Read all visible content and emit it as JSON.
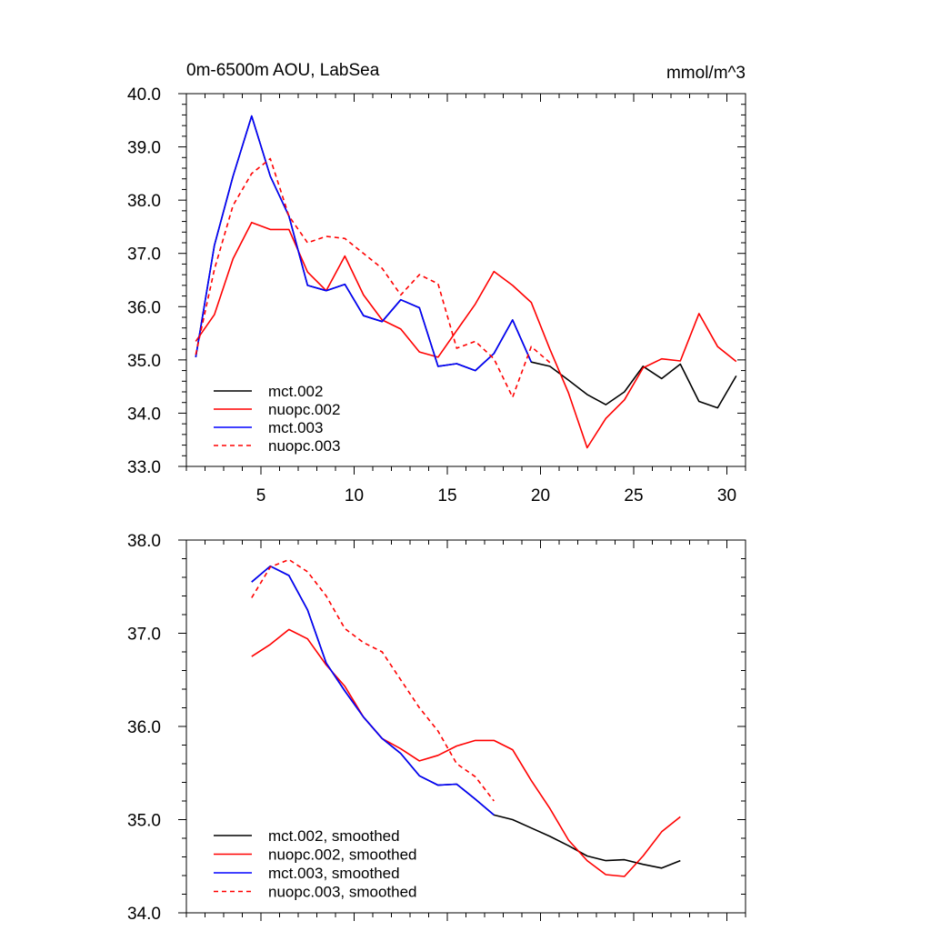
{
  "chart_data": [
    {
      "type": "line",
      "title_left": "0m-6500m AOU, LabSea",
      "title_right": "mmol/m^3",
      "xlabel": "",
      "ylabel": "",
      "xlim": [
        1,
        31
      ],
      "ylim": [
        33,
        40
      ],
      "xticks": [
        5,
        10,
        15,
        20,
        25,
        30
      ],
      "xtick_labels": [
        "5",
        "10",
        "15",
        "20",
        "25",
        "30"
      ],
      "yticks": [
        33,
        34,
        35,
        36,
        37,
        38,
        39,
        40
      ],
      "ytick_labels": [
        "33.0",
        "34.0",
        "35.0",
        "36.0",
        "37.0",
        "38.0",
        "39.0",
        "40.0"
      ],
      "legend_position": "bottom-left",
      "series": [
        {
          "name": "mct.002",
          "color": "#000000",
          "dash": "solid",
          "x": [
            1.5,
            2.5,
            3.5,
            4.5,
            5.5,
            6.5,
            7.5,
            8.5,
            9.5,
            10.5,
            11.5,
            12.5,
            13.5,
            14.5,
            15.5,
            16.5,
            17.5,
            18.5,
            19.5,
            20.5,
            21.5,
            22.5,
            23.5,
            24.5,
            25.5,
            26.5,
            27.5,
            28.5,
            29.5,
            30.5
          ],
          "values": [
            35.05,
            37.15,
            38.45,
            39.58,
            38.45,
            37.7,
            36.4,
            36.3,
            36.42,
            35.83,
            35.72,
            36.13,
            35.98,
            34.88,
            34.93,
            34.8,
            35.12,
            35.75,
            34.96,
            34.88,
            34.62,
            34.35,
            34.16,
            34.4,
            34.88,
            34.65,
            34.92,
            34.22,
            34.1,
            34.7
          ]
        },
        {
          "name": "nuopc.002",
          "color": "#ff0000",
          "dash": "solid",
          "x": [
            1.5,
            2.5,
            3.5,
            4.5,
            5.5,
            6.5,
            7.5,
            8.5,
            9.5,
            10.5,
            11.5,
            12.5,
            13.5,
            14.5,
            15.5,
            16.5,
            17.5,
            18.5,
            19.5,
            20.5,
            21.5,
            22.5,
            23.5,
            24.5,
            25.5,
            26.5,
            27.5,
            28.5,
            29.5,
            30.5
          ],
          "values": [
            35.35,
            35.85,
            36.9,
            37.58,
            37.45,
            37.45,
            36.65,
            36.3,
            36.95,
            36.22,
            35.75,
            35.58,
            35.15,
            35.05,
            35.55,
            36.05,
            36.66,
            36.4,
            36.08,
            35.2,
            34.38,
            33.35,
            33.9,
            34.25,
            34.85,
            35.02,
            34.98,
            35.87,
            35.25,
            34.97
          ]
        },
        {
          "name": "mct.003",
          "color": "#0000ff",
          "dash": "solid",
          "x": [
            1.5,
            2.5,
            3.5,
            4.5,
            5.5,
            6.5,
            7.5,
            8.5,
            9.5,
            10.5,
            11.5,
            12.5,
            13.5,
            14.5,
            15.5,
            16.5,
            17.5,
            18.5,
            19.5
          ],
          "values": [
            35.05,
            37.15,
            38.45,
            39.58,
            38.45,
            37.7,
            36.4,
            36.3,
            36.42,
            35.83,
            35.72,
            36.13,
            35.98,
            34.88,
            34.93,
            34.8,
            35.12,
            35.75,
            34.96
          ]
        },
        {
          "name": "nuopc.003",
          "color": "#ff0000",
          "dash": "dashed",
          "x": [
            1.5,
            2.5,
            3.5,
            4.5,
            5.5,
            6.5,
            7.5,
            8.5,
            9.5,
            10.5,
            11.5,
            12.5,
            13.5,
            14.5,
            15.5,
            16.5,
            17.5,
            18.5,
            19.5,
            20.5
          ],
          "values": [
            35.1,
            36.7,
            37.9,
            38.5,
            38.78,
            37.7,
            37.2,
            37.32,
            37.28,
            37.0,
            36.72,
            36.22,
            36.6,
            36.43,
            35.22,
            35.35,
            35.02,
            34.3,
            35.25,
            34.95
          ]
        }
      ]
    },
    {
      "type": "line",
      "xlabel": "",
      "ylabel": "",
      "xlim": [
        1,
        31
      ],
      "ylim": [
        34,
        38
      ],
      "xticks": [
        5,
        10,
        15,
        20,
        25,
        30
      ],
      "yticks": [
        34,
        35,
        36,
        37,
        38
      ],
      "ytick_labels": [
        "34.0",
        "35.0",
        "36.0",
        "37.0",
        "38.0"
      ],
      "legend_position": "bottom-left",
      "series": [
        {
          "name": "mct.002, smoothed",
          "color": "#000000",
          "dash": "solid",
          "x": [
            4.5,
            5.5,
            6.5,
            7.5,
            8.5,
            9.5,
            10.5,
            11.5,
            12.5,
            13.5,
            14.5,
            15.5,
            16.5,
            17.5,
            18.5,
            19.5,
            20.5,
            21.5,
            22.5,
            23.5,
            24.5,
            25.5,
            26.5,
            27.5
          ],
          "values": [
            37.55,
            37.72,
            37.62,
            37.25,
            36.68,
            36.38,
            36.1,
            35.87,
            35.71,
            35.47,
            35.37,
            35.38,
            35.22,
            35.05,
            35.0,
            34.91,
            34.82,
            34.72,
            34.61,
            34.56,
            34.57,
            34.52,
            34.48,
            34.56
          ]
        },
        {
          "name": "nuopc.002, smoothed",
          "color": "#ff0000",
          "dash": "solid",
          "x": [
            4.5,
            5.5,
            6.5,
            7.5,
            8.5,
            9.5,
            10.5,
            11.5,
            12.5,
            13.5,
            14.5,
            15.5,
            16.5,
            17.5,
            18.5,
            19.5,
            20.5,
            21.5,
            22.5,
            23.5,
            24.5,
            25.5,
            26.5,
            27.5
          ],
          "values": [
            36.75,
            36.88,
            37.04,
            36.94,
            36.66,
            36.43,
            36.1,
            35.87,
            35.76,
            35.63,
            35.69,
            35.79,
            35.85,
            35.85,
            35.75,
            35.42,
            35.12,
            34.78,
            34.56,
            34.41,
            34.39,
            34.61,
            34.87,
            35.03
          ]
        },
        {
          "name": "mct.003, smoothed",
          "color": "#0000ff",
          "dash": "solid",
          "x": [
            4.5,
            5.5,
            6.5,
            7.5,
            8.5,
            9.5,
            10.5,
            11.5,
            12.5,
            13.5,
            14.5,
            15.5,
            16.5,
            17.5
          ],
          "values": [
            37.55,
            37.72,
            37.62,
            37.25,
            36.68,
            36.38,
            36.1,
            35.87,
            35.71,
            35.47,
            35.37,
            35.38,
            35.22,
            35.05
          ]
        },
        {
          "name": "nuopc.003, smoothed",
          "color": "#ff0000",
          "dash": "dashed",
          "x": [
            4.5,
            5.5,
            6.5,
            7.5,
            8.5,
            9.5,
            10.5,
            11.5,
            12.5,
            13.5,
            14.5,
            15.5,
            16.5,
            17.5
          ],
          "values": [
            37.38,
            37.71,
            37.79,
            37.66,
            37.4,
            37.05,
            36.9,
            36.8,
            36.5,
            36.2,
            35.95,
            35.6,
            35.46,
            35.2
          ]
        }
      ]
    }
  ]
}
